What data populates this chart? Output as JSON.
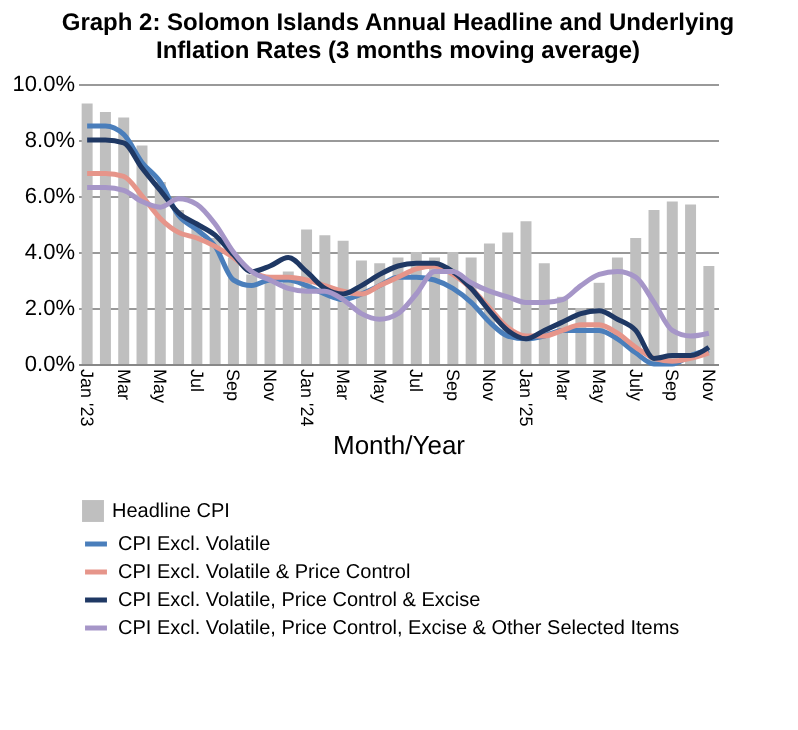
{
  "chart_data": {
    "type": "bar",
    "title": "Graph 2:  Solomon Islands Annual Headline and Underlying Inflation Rates (3 months moving average)",
    "xlabel": "Month/Year",
    "categories": [
      "Jan '23",
      null,
      "Mar",
      null,
      "May",
      null,
      "Jul",
      null,
      "Sep",
      null,
      "Nov",
      null,
      "Jan '24",
      null,
      "Mar",
      null,
      "May",
      null,
      "Jul",
      null,
      "Sep",
      null,
      "Nov",
      null,
      "Jan '25",
      null,
      "Mar",
      null,
      "May",
      null,
      "July",
      null,
      "Sep",
      null,
      "Nov"
    ],
    "series": [
      {
        "name": "Headline CPI",
        "color": "#bfbfbf",
        "values": [
          9.3,
          9.0,
          8.8,
          7.8,
          6.5,
          5.5,
          5.0,
          4.5,
          3.8,
          3.2,
          3.0,
          3.3,
          4.8,
          4.6,
          4.4,
          3.7,
          3.6,
          3.8,
          4.0,
          3.8,
          4.0,
          3.8,
          4.3,
          4.7,
          5.1,
          3.6,
          2.4,
          2.0,
          2.9,
          3.8,
          4.5,
          5.5,
          5.8,
          5.7,
          3.5
        ]
      },
      {
        "name": "CPI Excl. Volatile",
        "type": "line",
        "color": "#4a7ebb",
        "values": [
          8.5,
          8.5,
          8.2,
          7.2,
          6.5,
          5.3,
          4.8,
          4.2,
          3.0,
          2.8,
          3.0,
          3.0,
          2.8,
          2.5,
          2.3,
          2.5,
          2.8,
          3.1,
          3.1,
          3.0,
          2.7,
          2.2,
          1.5,
          1.0,
          0.9,
          1.0,
          1.2,
          1.2,
          1.2,
          0.9,
          0.4,
          0.0,
          0.0,
          0.3,
          0.5
        ]
      },
      {
        "name": "CPI Excl. Volatile & Price Control",
        "type": "line",
        "color": "#e6958a",
        "values": [
          6.8,
          6.8,
          6.7,
          6.0,
          5.2,
          4.7,
          4.5,
          4.2,
          3.8,
          3.3,
          3.1,
          3.1,
          3.0,
          2.8,
          2.6,
          2.5,
          2.8,
          3.1,
          3.4,
          3.5,
          3.2,
          2.7,
          2.0,
          1.3,
          1.0,
          1.0,
          1.2,
          1.4,
          1.4,
          1.1,
          0.6,
          0.2,
          0.1,
          0.2,
          0.4
        ]
      },
      {
        "name": "CPI Excl. Volatile, Price Control & Excise",
        "type": "line",
        "color": "#1f3864",
        "values": [
          8.0,
          8.0,
          7.9,
          7.0,
          6.2,
          5.4,
          5.0,
          4.6,
          3.9,
          3.3,
          3.5,
          3.8,
          3.3,
          2.7,
          2.5,
          2.8,
          3.2,
          3.5,
          3.6,
          3.6,
          3.3,
          2.7,
          1.9,
          1.2,
          0.9,
          1.2,
          1.5,
          1.8,
          1.9,
          1.6,
          1.2,
          0.2,
          0.3,
          0.3,
          0.6
        ]
      },
      {
        "name": "CPI Excl. Volatile, Price Control, Excise & Other Selected Items",
        "type": "line",
        "color": "#a696c8",
        "values": [
          6.3,
          6.3,
          6.2,
          5.8,
          5.6,
          5.9,
          5.7,
          5.0,
          4.0,
          3.3,
          3.0,
          2.7,
          2.6,
          2.6,
          2.3,
          1.8,
          1.6,
          1.8,
          2.5,
          3.3,
          3.3,
          2.9,
          2.6,
          2.4,
          2.2,
          2.2,
          2.3,
          2.8,
          3.2,
          3.3,
          3.1,
          2.2,
          1.2,
          1.0,
          1.1
        ]
      }
    ],
    "ylim": [
      0,
      10
    ],
    "yticks": [
      {
        "value": 0,
        "label": "0.0%"
      },
      {
        "value": 2,
        "label": "2.0%"
      },
      {
        "value": 4,
        "label": "4.0%"
      },
      {
        "value": 6,
        "label": "6.0%"
      },
      {
        "value": 8,
        "label": "8.0%"
      },
      {
        "value": 10,
        "label": "10.0%"
      }
    ],
    "grid": "y",
    "legend": "bottom"
  }
}
